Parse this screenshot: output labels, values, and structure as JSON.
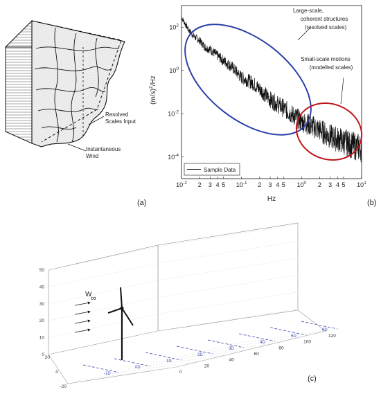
{
  "panel_a": {
    "label": "(a)",
    "annotations": {
      "resolved_line1": "Resolved",
      "resolved_line2": "Scales Input",
      "wind_line1": "Instantaneous",
      "wind_line2": "Wind"
    }
  },
  "panel_b": {
    "label": "(b)",
    "annotations": {
      "large_line1": "Large-scale,",
      "large_line2": "coherent structures",
      "large_line3": "(resolved scales)",
      "small_line1": "Small-scale motions",
      "small_line2": "(modelled scales)"
    },
    "colors": {
      "large_ellipse": "#2b3fa8",
      "small_ellipse": "#c0141b"
    }
  },
  "panel_c": {
    "label": "(c)",
    "wind_symbol": "W",
    "wind_subscript": "∞",
    "z_ticks": [
      "0",
      "10",
      "20",
      "30",
      "40",
      "50"
    ],
    "x_ticks": [
      "0",
      "20",
      "40",
      "60",
      "80",
      "100",
      "120"
    ],
    "y_ticks": [
      "-20",
      "0",
      "20"
    ],
    "rotor_diameter_labels": [
      "-1D",
      "0D",
      "1D",
      "2D",
      "3D",
      "4D",
      "5D",
      "6D"
    ],
    "colors": {
      "diameter_lines": "#3a46b0"
    }
  },
  "chart_data": {
    "type": "line",
    "title": "",
    "xlabel": "Hz",
    "ylabel": "(m/s)^2/Hz",
    "xscale": "log",
    "yscale": "log",
    "xlim": [
      0.01,
      10
    ],
    "ylim": [
      1e-05,
      1000
    ],
    "x_tick_labels": [
      "10^-2",
      "2",
      "3",
      "4",
      "5",
      "10^-1",
      "2",
      "3",
      "4",
      "5",
      "10^0",
      "2",
      "3",
      "4",
      "5",
      "10^1"
    ],
    "y_tick_labels": [
      "10^-4",
      "10^-2",
      "10^0",
      "10^2"
    ],
    "legend": "bottom-left",
    "series": [
      {
        "name": "Sample Data",
        "x": [
          0.01,
          0.013,
          0.016,
          0.02,
          0.025,
          0.03,
          0.04,
          0.05,
          0.07,
          0.1,
          0.15,
          0.2,
          0.3,
          0.5,
          0.7,
          1,
          1.5,
          2,
          3,
          5,
          7,
          10
        ],
        "y": [
          300,
          80,
          40,
          25,
          12,
          10,
          5,
          3,
          1.5,
          0.5,
          0.3,
          0.15,
          0.05,
          0.02,
          0.01,
          0.005,
          0.003,
          0.002,
          0.001,
          0.0006,
          0.0004,
          0.0003
        ]
      }
    ]
  }
}
